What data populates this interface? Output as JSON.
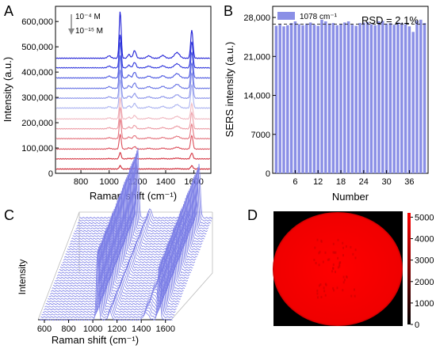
{
  "chart_data": [
    {
      "panel": "A",
      "type": "line",
      "xlabel": "Raman shift (cm⁻¹)",
      "ylabel": "Intensity (a.u.)",
      "xlim": [
        620,
        1720
      ],
      "ylim": [
        0,
        660000
      ],
      "x_ticks": [
        "800",
        "1000",
        "1200",
        "1400",
        "1600"
      ],
      "x_tick_values": [
        800,
        1000,
        1200,
        1400,
        1600
      ],
      "y_ticks": [
        "0",
        "100,000",
        "200,000",
        "300,000",
        "400,000",
        "500,000",
        "600,000"
      ],
      "y_tick_values": [
        0,
        100000,
        200000,
        300000,
        400000,
        500000,
        600000
      ],
      "annotation_top": "10⁻⁴ M",
      "annotation_bottom": "10⁻¹⁵ M",
      "series": [
        {
          "color": "#1f1fd6",
          "baseline": 455000,
          "peak1078": 640000,
          "peak1585": 565000
        },
        {
          "color": "#2e35dc",
          "baseline": 417000,
          "peak1078": 550000,
          "peak1585": 520000
        },
        {
          "color": "#4a56e0",
          "baseline": 377000,
          "peak1078": 520000,
          "peak1585": 480000
        },
        {
          "color": "#6672e4",
          "baseline": 336000,
          "peak1078": 468000,
          "peak1585": 438000
        },
        {
          "color": "#8a93ea",
          "baseline": 297000,
          "peak1078": 410000,
          "peak1585": 398000
        },
        {
          "color": "#aab2f0",
          "baseline": 258000,
          "peak1078": 370000,
          "peak1585": 350000
        },
        {
          "color": "#f0b8c0",
          "baseline": 215000,
          "peak1078": 300000,
          "peak1585": 275000
        },
        {
          "color": "#ec9aa3",
          "baseline": 176000,
          "peak1078": 262000,
          "peak1585": 240000
        },
        {
          "color": "#e4727c",
          "baseline": 137000,
          "peak1078": 215000,
          "peak1585": 195000
        },
        {
          "color": "#dc4e5a",
          "baseline": 96000,
          "peak1078": 155000,
          "peak1585": 150000
        },
        {
          "color": "#d43340",
          "baseline": 57000,
          "peak1078": 82000,
          "peak1585": 80000
        },
        {
          "color": "#cc1f2c",
          "baseline": 17000,
          "peak1078": 30000,
          "peak1585": 30000
        }
      ]
    },
    {
      "panel": "B",
      "type": "bar",
      "xlabel": "Number",
      "ylabel": "SERS intensity (a.u.)",
      "legend": "1078 cm⁻¹",
      "rsd_label": "RSD = 2.1%",
      "bar_color": "#8a8fe6",
      "mean_line": 26800,
      "ylim": [
        0,
        30000
      ],
      "y_ticks": [
        "0",
        "7000",
        "14,000",
        "21,000",
        "28,000"
      ],
      "y_tick_values": [
        0,
        7000,
        14000,
        21000,
        28000
      ],
      "x_ticks": [
        "6",
        "12",
        "18",
        "24",
        "30",
        "36"
      ],
      "x_tick_values": [
        6,
        12,
        18,
        24,
        30,
        36
      ],
      "categories": [
        1,
        2,
        3,
        4,
        5,
        6,
        7,
        8,
        9,
        10,
        11,
        12,
        13,
        14,
        15,
        16,
        17,
        18,
        19,
        20,
        21,
        22,
        23,
        24,
        25,
        26,
        27,
        28,
        29,
        30,
        31,
        32,
        33,
        34,
        35,
        36,
        37,
        38,
        39,
        40
      ],
      "values": [
        26500,
        26700,
        26400,
        26600,
        27000,
        27300,
        26800,
        26600,
        26900,
        27100,
        26700,
        26500,
        27600,
        27300,
        26900,
        27000,
        26600,
        26800,
        27100,
        27300,
        26700,
        26500,
        27000,
        27100,
        27200,
        26800,
        26600,
        27300,
        27400,
        26900,
        27000,
        26700,
        27100,
        27000,
        26800,
        26400,
        25400,
        27400,
        27600,
        27000
      ]
    },
    {
      "panel": "C",
      "type": "line",
      "xlabel": "Raman shift (cm⁻¹)",
      "ylabel": "Intensity",
      "x_ticks": [
        "600",
        "800",
        "1000",
        "1200",
        "1400",
        "1600"
      ],
      "x_tick_values": [
        600,
        800,
        1000,
        1200,
        1400,
        1600
      ],
      "spectra_count": 40,
      "color": "#7b7ee6"
    },
    {
      "panel": "D",
      "type": "heatmap",
      "colorbar_ticks": [
        "0",
        "1000",
        "2000",
        "3000",
        "4000",
        "5000"
      ],
      "colorbar_tick_values": [
        0,
        1000,
        2000,
        3000,
        4000,
        5000
      ],
      "colorbar_max": 5200,
      "colormap": [
        "#000000",
        "#ff0000"
      ]
    }
  ],
  "panel_labels": [
    "A",
    "B",
    "C",
    "D"
  ]
}
